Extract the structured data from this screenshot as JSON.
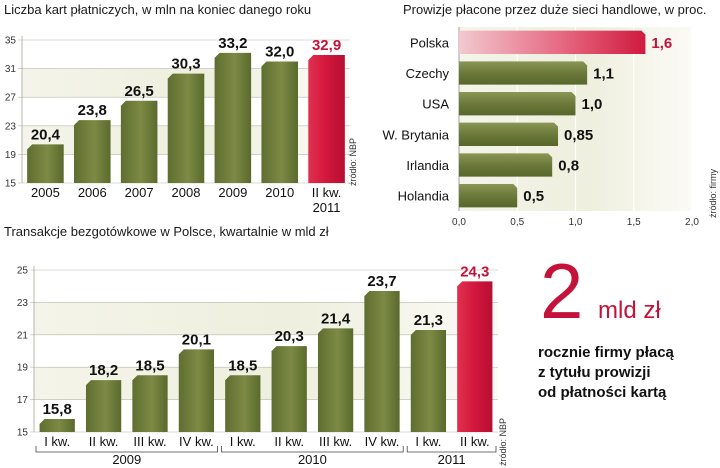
{
  "chart_data": [
    {
      "type": "bar",
      "title": "Liczba kart płatniczych, w mln na koniec danego roku",
      "categories": [
        "2005",
        "2006",
        "2007",
        "2008",
        "2009",
        "2010",
        "II kw. 2011"
      ],
      "values": [
        20.4,
        23.8,
        26.5,
        30.3,
        33.2,
        32.0,
        32.9
      ],
      "value_labels": [
        "20,4",
        "23,8",
        "26,5",
        "30,3",
        "33,2",
        "32,0",
        "32,9"
      ],
      "highlight_index": 6,
      "ylim": [
        15,
        35
      ],
      "yticks": [
        15,
        19,
        23,
        27,
        31,
        35
      ],
      "source": "źródło: NBP"
    },
    {
      "type": "bar",
      "orientation": "horizontal",
      "title": "Prowizje płacone przez duże sieci handlowe, w proc.",
      "categories": [
        "Polska",
        "Czechy",
        "USA",
        "W. Brytania",
        "Irlandia",
        "Holandia"
      ],
      "values": [
        1.6,
        1.1,
        1.0,
        0.85,
        0.8,
        0.5
      ],
      "value_labels": [
        "1,6",
        "1,1",
        "1,0",
        "0,85",
        "0,8",
        "0,5"
      ],
      "highlight_index": 0,
      "xlim": [
        0,
        2.0
      ],
      "xticks": [
        0.0,
        0.5,
        1.0,
        1.5,
        2.0
      ],
      "xtick_labels": [
        "0,0",
        "0,5",
        "1,0",
        "1,5",
        "2,0"
      ],
      "source": "źródło: firmy"
    },
    {
      "type": "bar",
      "title": "Transakcje bezgotówkowe w Polsce, kwartalnie w mld zł",
      "categories": [
        "I kw.",
        "II kw.",
        "III kw.",
        "IV kw.",
        "I kw.",
        "II kw.",
        "III kw.",
        "IV kw.",
        "I kw.",
        "II kw."
      ],
      "groups": [
        {
          "label": "2009",
          "start": 0,
          "end": 3
        },
        {
          "label": "2010",
          "start": 4,
          "end": 7
        },
        {
          "label": "2011",
          "start": 8,
          "end": 9
        }
      ],
      "values": [
        15.8,
        18.2,
        18.5,
        20.1,
        18.5,
        20.3,
        21.4,
        23.7,
        21.3,
        24.3
      ],
      "value_labels": [
        "15,8",
        "18,2",
        "18,5",
        "20,1",
        "18,5",
        "20,3",
        "21,4",
        "23,7",
        "21,3",
        "24,3"
      ],
      "highlight_index": 9,
      "ylim": [
        15,
        25
      ],
      "yticks": [
        15,
        17,
        19,
        21,
        23,
        25
      ],
      "source": "źródło: NBP"
    }
  ],
  "callout": {
    "number": "2",
    "unit": "mld zł",
    "lines": [
      "rocznie firmy płacą",
      "z tytułu prowizji",
      "od płatności kartą"
    ]
  },
  "colors": {
    "bar_green": "#6e7c3c",
    "bar_green_light": "#8e9a56",
    "highlight": "#d8193f",
    "highlight_text": "#c4123a",
    "band": "#ebecd9"
  }
}
